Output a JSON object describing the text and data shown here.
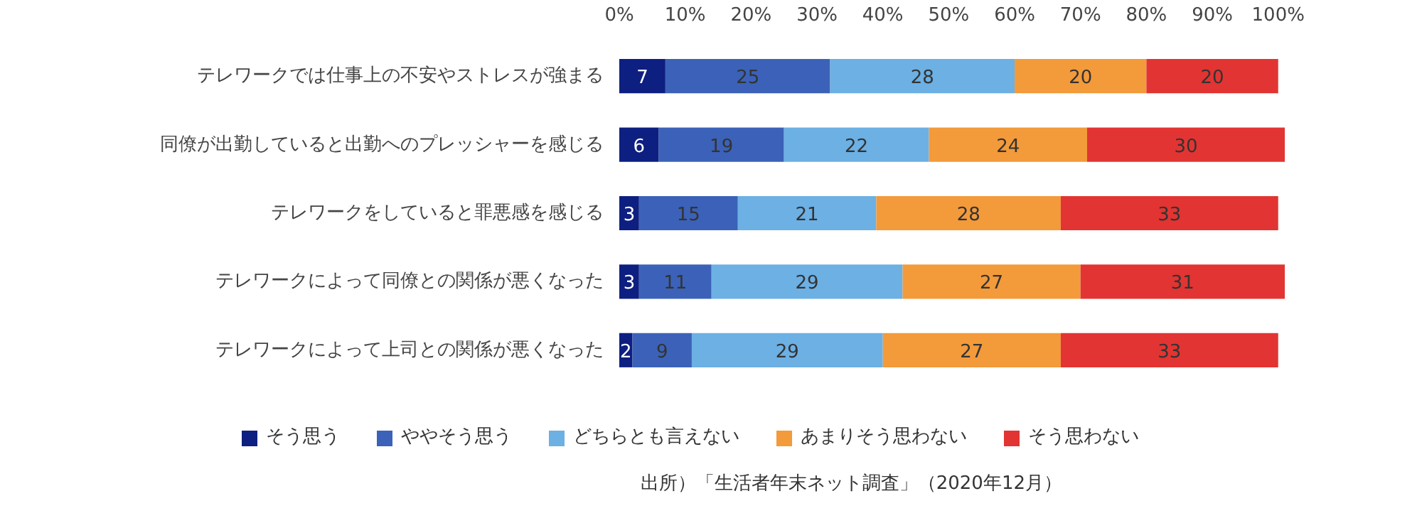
{
  "chart_data": {
    "type": "bar",
    "orientation": "horizontal",
    "stacked": true,
    "data_labels": true,
    "grid": false,
    "legend": "bottom",
    "categories": [
      "テレワークでは仕事上の不安やストレスが強まる",
      "同僚が出勤していると出勤へのプレッシャーを感じる",
      "テレワークをしていると罪悪感を感じる",
      "テレワークによって同僚との関係が悪くなった",
      "テレワークによって上司との関係が悪くなった"
    ],
    "series": [
      {
        "name": "そう思う",
        "color": "#0d1f80",
        "values": [
          7,
          6,
          3,
          3,
          2
        ]
      },
      {
        "name": "ややそう思う",
        "color": "#3b62b8",
        "values": [
          25,
          19,
          15,
          11,
          9
        ]
      },
      {
        "name": "どちらとも言えない",
        "color": "#6cb0e4",
        "values": [
          28,
          22,
          21,
          29,
          29
        ]
      },
      {
        "name": "あまりそう思わない",
        "color": "#f39a3a",
        "values": [
          20,
          24,
          28,
          27,
          27
        ]
      },
      {
        "name": "そう思わない",
        "color": "#e23432",
        "values": [
          20,
          30,
          33,
          31,
          33
        ]
      }
    ],
    "xlim": [
      0,
      101
    ],
    "xticks": [
      {
        "value": 0,
        "label": "0%"
      },
      {
        "value": 10,
        "label": "10%"
      },
      {
        "value": 20,
        "label": "20%"
      },
      {
        "value": 30,
        "label": "30%"
      },
      {
        "value": 40,
        "label": "40%"
      },
      {
        "value": 50,
        "label": "50%"
      },
      {
        "value": 60,
        "label": "60%"
      },
      {
        "value": 70,
        "label": "70%"
      },
      {
        "value": 80,
        "label": "80%"
      },
      {
        "value": 90,
        "label": "90%"
      },
      {
        "value": 100,
        "label": "100%"
      }
    ],
    "annotations": [
      "出所）「生活者年末ネット調査」（2020年12月）"
    ]
  }
}
